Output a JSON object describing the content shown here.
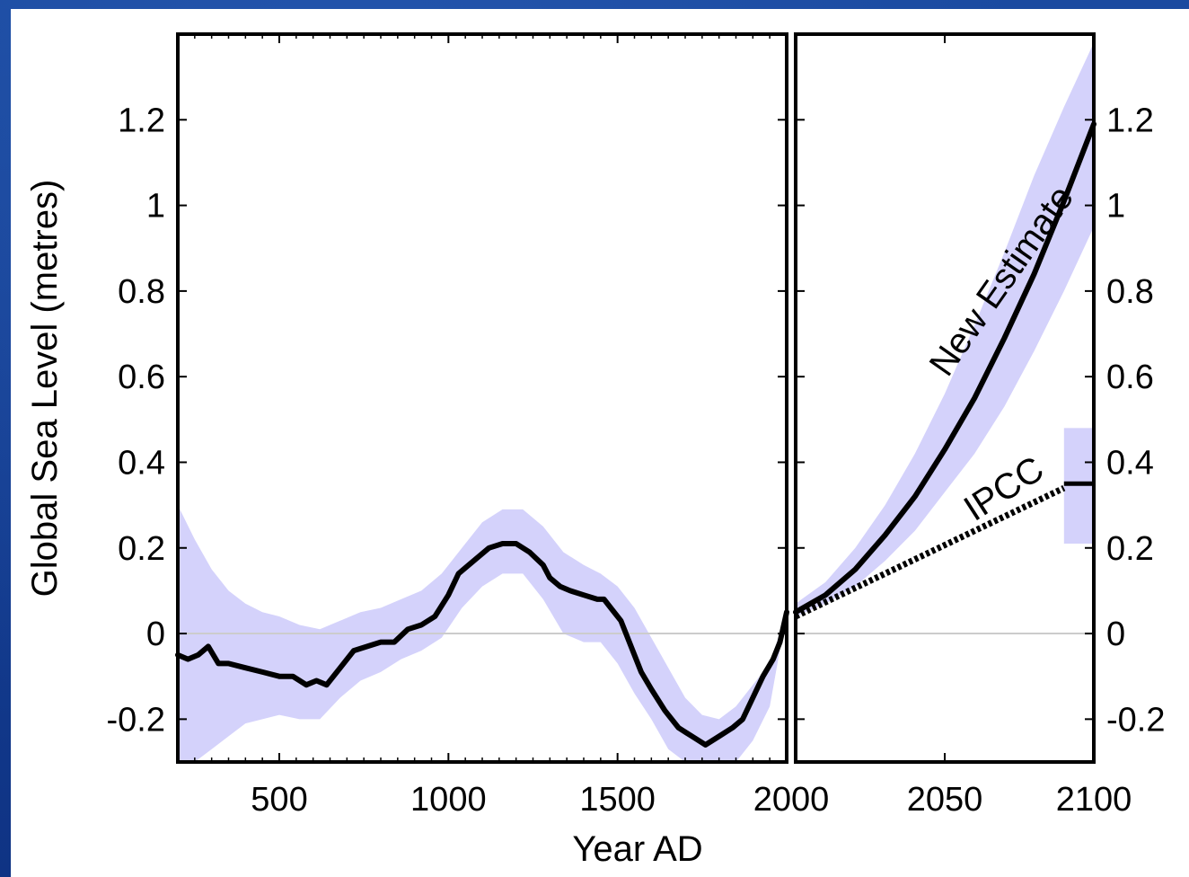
{
  "colors": {
    "band": "#d4d2fb",
    "line": "#000000",
    "zero_line": "#cccccc",
    "background": "#1a4aa0"
  },
  "chart_data": [
    {
      "type": "line",
      "panel": "left",
      "xlabel": "Year AD",
      "ylabel": "Global Sea Level (metres)",
      "xlim": [
        200,
        2000
      ],
      "ylim": [
        -0.3,
        1.4
      ],
      "x_ticks": [
        500,
        1000,
        1500,
        2000
      ],
      "x_tick_labels": [
        "500",
        "1000",
        "1500",
        "2000"
      ],
      "y_ticks": [
        -0.2,
        0,
        0.2,
        0.4,
        0.6,
        0.8,
        1,
        1.2
      ],
      "y_tick_labels": [
        "-0.2",
        "0",
        "0.2",
        "0.4",
        "0.6",
        "0.8",
        "1",
        "1.2"
      ],
      "zero_reference_line": 0,
      "series": [
        {
          "x": [
            200,
            230,
            260,
            290,
            320,
            350,
            400,
            450,
            500,
            540,
            580,
            610,
            640,
            680,
            720,
            760,
            800,
            840,
            880,
            920,
            960,
            1000,
            1030,
            1060,
            1090,
            1120,
            1160,
            1200,
            1240,
            1280,
            1300,
            1330,
            1360,
            1400,
            1440,
            1460,
            1480,
            1510,
            1540,
            1570,
            1600,
            1640,
            1680,
            1720,
            1760,
            1800,
            1840,
            1870,
            1900,
            1930,
            1960,
            1980,
            2000
          ],
          "y": [
            -0.05,
            -0.06,
            -0.05,
            -0.03,
            -0.07,
            -0.07,
            -0.08,
            -0.09,
            -0.1,
            -0.1,
            -0.12,
            -0.11,
            -0.12,
            -0.08,
            -0.04,
            -0.03,
            -0.02,
            -0.02,
            0.01,
            0.02,
            0.04,
            0.09,
            0.14,
            0.16,
            0.18,
            0.2,
            0.21,
            0.21,
            0.19,
            0.16,
            0.13,
            0.11,
            0.1,
            0.09,
            0.08,
            0.08,
            0.06,
            0.03,
            -0.03,
            -0.09,
            -0.13,
            -0.18,
            -0.22,
            -0.24,
            -0.26,
            -0.24,
            -0.22,
            -0.2,
            -0.15,
            -0.1,
            -0.06,
            -0.02,
            0.05
          ]
        }
      ],
      "uncertainty_band": {
        "x": [
          200,
          250,
          300,
          350,
          400,
          450,
          500,
          560,
          620,
          680,
          740,
          800,
          860,
          920,
          980,
          1040,
          1100,
          1160,
          1220,
          1280,
          1340,
          1400,
          1450,
          1500,
          1550,
          1600,
          1650,
          1700,
          1750,
          1800,
          1850,
          1900,
          1950,
          2000
        ],
        "upper": [
          0.3,
          0.22,
          0.15,
          0.1,
          0.07,
          0.05,
          0.04,
          0.02,
          0.01,
          0.03,
          0.05,
          0.06,
          0.08,
          0.1,
          0.14,
          0.2,
          0.26,
          0.29,
          0.29,
          0.25,
          0.19,
          0.16,
          0.14,
          0.11,
          0.06,
          -0.01,
          -0.08,
          -0.15,
          -0.19,
          -0.2,
          -0.17,
          -0.12,
          -0.07,
          0.05
        ],
        "lower": [
          -0.3,
          -0.3,
          -0.27,
          -0.24,
          -0.21,
          -0.2,
          -0.19,
          -0.2,
          -0.2,
          -0.15,
          -0.11,
          -0.09,
          -0.06,
          -0.04,
          -0.01,
          0.06,
          0.11,
          0.14,
          0.14,
          0.08,
          0.0,
          -0.02,
          -0.02,
          -0.07,
          -0.14,
          -0.2,
          -0.27,
          -0.3,
          -0.3,
          -0.3,
          -0.3,
          -0.25,
          -0.17,
          0.05
        ]
      }
    },
    {
      "type": "line",
      "panel": "right",
      "xlim": [
        2000,
        2100
      ],
      "ylim": [
        -0.3,
        1.4
      ],
      "x_ticks": [
        2000,
        2050,
        2100
      ],
      "x_tick_labels": [
        "2050",
        "2100"
      ],
      "y_ticks": [
        -0.2,
        0,
        0.2,
        0.4,
        0.6,
        0.8,
        1,
        1.2
      ],
      "y_tick_labels": [
        "-0.2",
        "0",
        "0.2",
        "0.4",
        "0.6",
        "0.8",
        "1",
        "1.2"
      ],
      "y_axis_side": "right",
      "zero_reference_line": 0,
      "series": [
        {
          "name": "New Estimate",
          "style": "solid",
          "x": [
            2000,
            2010,
            2020,
            2030,
            2040,
            2050,
            2060,
            2070,
            2080,
            2090,
            2100
          ],
          "y": [
            0.05,
            0.09,
            0.15,
            0.23,
            0.32,
            0.43,
            0.55,
            0.69,
            0.84,
            1.01,
            1.19
          ]
        },
        {
          "name": "IPCC",
          "style": "dashed",
          "x": [
            2000,
            2090
          ],
          "y": [
            0.04,
            0.34
          ]
        }
      ],
      "uncertainty_band": {
        "x": [
          2000,
          2010,
          2020,
          2030,
          2040,
          2050,
          2060,
          2070,
          2080,
          2090,
          2100
        ],
        "upper": [
          0.07,
          0.12,
          0.2,
          0.3,
          0.42,
          0.56,
          0.72,
          0.89,
          1.07,
          1.23,
          1.38
        ],
        "lower": [
          0.04,
          0.07,
          0.11,
          0.17,
          0.24,
          0.33,
          0.42,
          0.53,
          0.66,
          0.8,
          0.95
        ]
      },
      "ipcc_range": {
        "x": [
          2090,
          2100
        ],
        "center": 0.35,
        "upper": 0.48,
        "lower": 0.21
      },
      "annotations": [
        "New Estimate",
        "IPCC"
      ]
    }
  ]
}
